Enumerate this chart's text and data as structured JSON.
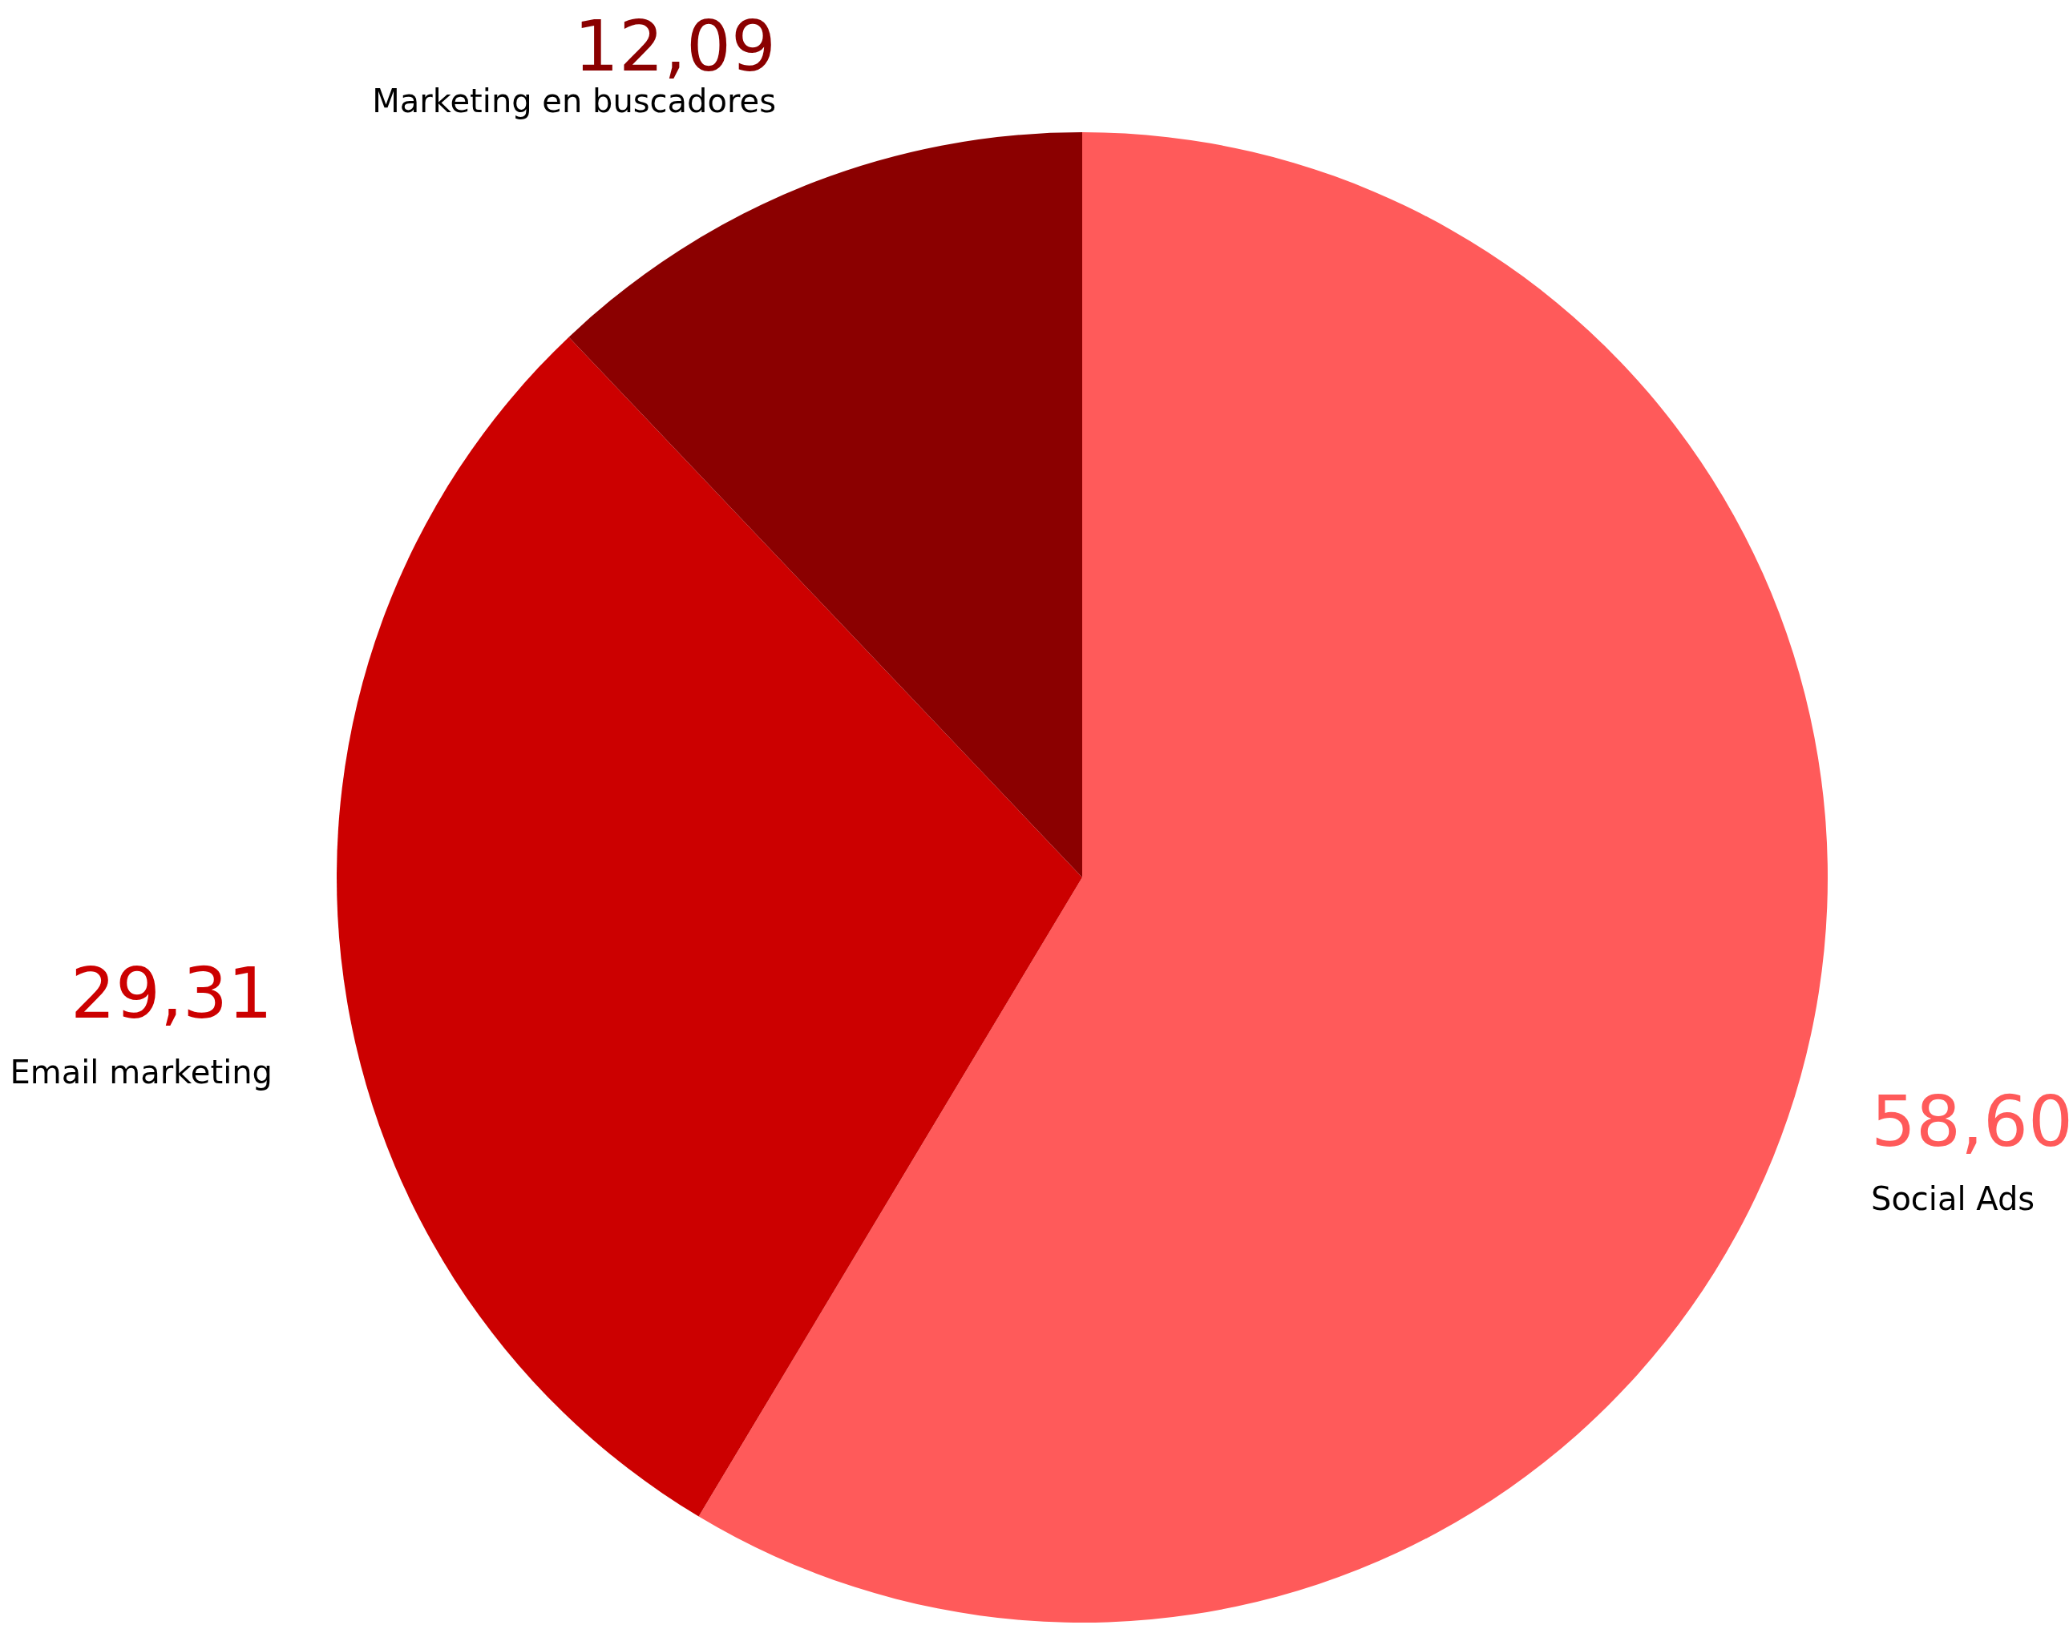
{
  "chart_data": {
    "type": "pie",
    "categories": [
      "Social Ads",
      "Email marketing",
      "Marketing en buscadores"
    ],
    "values": [
      58.6,
      29.31,
      12.09
    ],
    "value_labels": [
      "58,60",
      "29,31",
      "12,09"
    ],
    "colors": [
      "#ff5a5a",
      "#cc0000",
      "#8b0000"
    ]
  }
}
